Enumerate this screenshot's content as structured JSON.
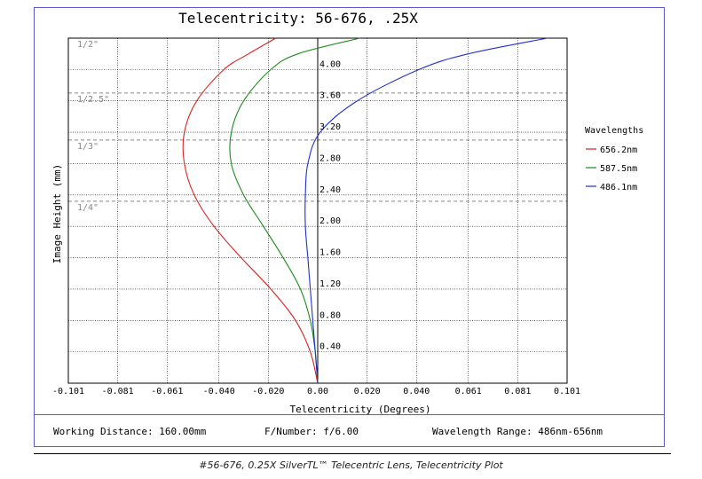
{
  "chart_data": {
    "type": "line",
    "title": "Telecentricity: 56-676, .25X",
    "xlabel": "Telecentricity (Degrees)",
    "ylabel": "Image Height (mm)",
    "xlim": [
      -0.101,
      0.101
    ],
    "ylim": [
      0,
      4.4
    ],
    "x_ticks": [
      "-0.101",
      "-0.081",
      "-0.061",
      "-0.040",
      "-0.020",
      "0.00",
      "0.020",
      "0.040",
      "0.061",
      "0.081",
      "0.101"
    ],
    "x_tick_values": [
      -0.101,
      -0.081,
      -0.061,
      -0.04,
      -0.02,
      0.0,
      0.02,
      0.04,
      0.061,
      0.081,
      0.101
    ],
    "y_ticks": [
      "0.40",
      "0.80",
      "1.20",
      "1.60",
      "2.00",
      "2.40",
      "2.80",
      "3.20",
      "3.60",
      "4.00"
    ],
    "y_tick_values": [
      0.4,
      0.8,
      1.2,
      1.6,
      2.0,
      2.4,
      2.8,
      3.2,
      3.6,
      4.0
    ],
    "sensor_markers": [
      {
        "label": "1/2\"",
        "y": 4.4
      },
      {
        "label": "1/2.5\"",
        "y": 3.7
      },
      {
        "label": "1/3\"",
        "y": 3.1
      },
      {
        "label": "1/4\"",
        "y": 2.32
      }
    ],
    "legend_title": "Wavelengths",
    "legend_position": "right",
    "grid": true,
    "series": [
      {
        "name": "656.2nm",
        "color": "#e02020",
        "y": [
          0,
          0.4,
          0.8,
          1.2,
          1.6,
          2.0,
          2.4,
          2.8,
          3.2,
          3.6,
          4.0,
          4.2,
          4.4
        ],
        "x": [
          0.0,
          -0.003,
          -0.009,
          -0.019,
          -0.031,
          -0.042,
          -0.05,
          -0.054,
          -0.054,
          -0.049,
          -0.038,
          -0.028,
          -0.017
        ]
      },
      {
        "name": "587.5nm",
        "color": "#1a8a1a",
        "y": [
          0,
          0.4,
          0.8,
          1.2,
          1.6,
          2.0,
          2.4,
          2.8,
          3.2,
          3.6,
          4.0,
          4.2,
          4.4
        ],
        "x": [
          0.0,
          -0.001,
          -0.003,
          -0.007,
          -0.014,
          -0.022,
          -0.03,
          -0.035,
          -0.035,
          -0.03,
          -0.019,
          -0.008,
          0.017
        ]
      },
      {
        "name": "486.1nm",
        "color": "#2030d0",
        "y": [
          0,
          0.4,
          0.8,
          1.2,
          1.6,
          2.0,
          2.4,
          2.8,
          3.2,
          3.6,
          4.0,
          4.2,
          4.4
        ],
        "x": [
          0.0,
          -0.001,
          -0.002,
          -0.003,
          -0.004,
          -0.005,
          -0.005,
          -0.004,
          0.001,
          0.016,
          0.041,
          0.061,
          0.093
        ]
      }
    ]
  },
  "footer": {
    "working_distance": "Working Distance: 160.00mm",
    "f_number": "F/Number: f/6.00",
    "wavelength_range": "Wavelength Range: 486nm-656nm"
  },
  "caption": "#56-676, 0.25X SilverTL™ Telecentric Lens, Telecentricity Plot",
  "colors": {
    "frame": "#5a5ad2",
    "axis": "#000000",
    "grid": "#000000",
    "marker": "#999999"
  }
}
